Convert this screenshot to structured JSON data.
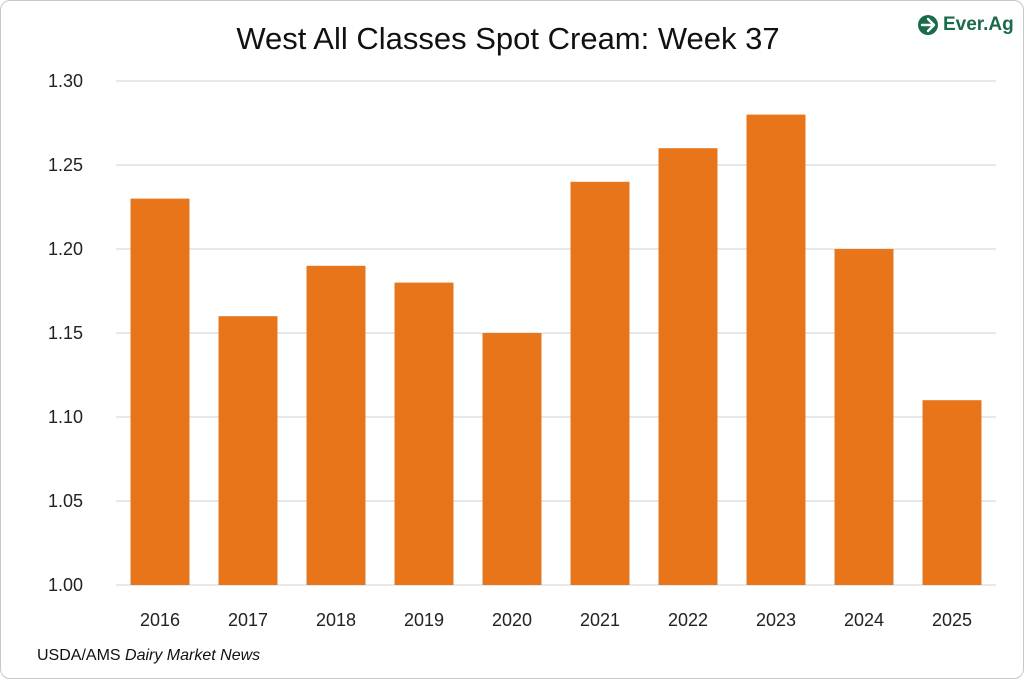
{
  "chart_data": {
    "type": "bar",
    "title": "West All Classes Spot Cream: Week 37",
    "categories": [
      "2016",
      "2017",
      "2018",
      "2019",
      "2020",
      "2021",
      "2022",
      "2023",
      "2024",
      "2025"
    ],
    "values": [
      1.23,
      1.16,
      1.19,
      1.18,
      1.15,
      1.24,
      1.26,
      1.28,
      1.2,
      1.11
    ],
    "ylim": [
      1.0,
      1.3
    ],
    "yticks": [
      "1.00",
      "1.05",
      "1.10",
      "1.15",
      "1.20",
      "1.25",
      "1.30"
    ],
    "xlabel": "",
    "ylabel": "",
    "grid": true,
    "colors": {
      "bar": "#E8751A",
      "grid": "#d0d0d0"
    }
  },
  "logo": {
    "text": "Ever.Ag",
    "color": "#1a6b4a"
  },
  "source": {
    "prefix": "USDA/AMS ",
    "italic": "Dairy Market News"
  }
}
